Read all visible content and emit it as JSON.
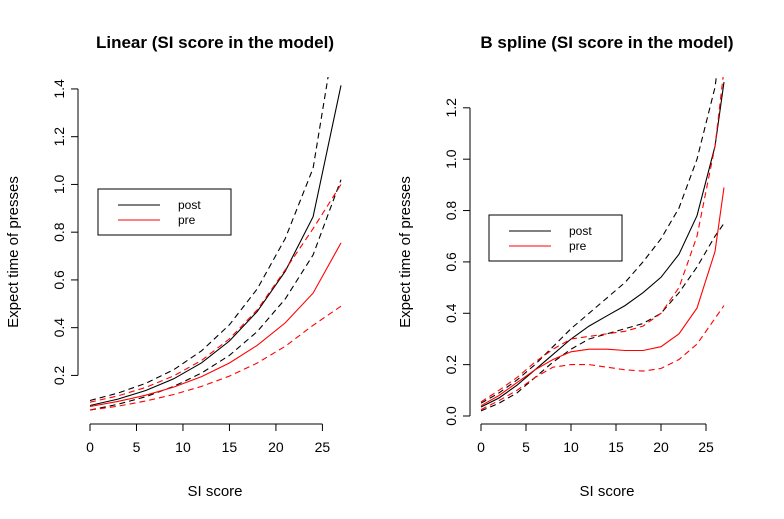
{
  "chart_data": [
    {
      "type": "line",
      "title": "Linear (SI score in the model)",
      "xlabel": "SI score",
      "ylabel": "Expect time of presses",
      "xlim": [
        0,
        27
      ],
      "ylim": [
        0.03,
        1.45
      ],
      "xticks": [
        0,
        5,
        10,
        15,
        20,
        25
      ],
      "yticks": [
        0.2,
        0.4,
        0.6,
        0.8,
        1.0,
        1.2,
        1.4
      ],
      "ytick_labels": [
        "0.2",
        "0.4",
        "0.6",
        "0.8",
        "1.0",
        "1.2",
        "1.4"
      ],
      "grid": false,
      "legend_position": "center-left",
      "legend": [
        {
          "label": "post",
          "color": "#000000"
        },
        {
          "label": "pre",
          "color": "#ff0000"
        }
      ],
      "x": [
        0,
        3,
        6,
        9,
        12,
        15,
        18,
        21,
        24,
        27
      ],
      "series": [
        {
          "name": "post",
          "style": "solid",
          "color": "#000000",
          "values": [
            0.074,
            0.101,
            0.137,
            0.186,
            0.253,
            0.344,
            0.468,
            0.636,
            0.865,
            1.415
          ]
        },
        {
          "name": "post upper",
          "style": "dashed",
          "color": "#000000",
          "values": [
            0.095,
            0.126,
            0.167,
            0.224,
            0.303,
            0.412,
            0.563,
            0.773,
            1.068,
            1.78
          ]
        },
        {
          "name": "post lower",
          "style": "dashed",
          "color": "#000000",
          "values": [
            0.055,
            0.079,
            0.111,
            0.154,
            0.21,
            0.284,
            0.384,
            0.52,
            0.705,
            1.02
          ]
        },
        {
          "name": "pre",
          "style": "solid",
          "color": "#ff0000",
          "values": [
            0.07,
            0.091,
            0.117,
            0.151,
            0.195,
            0.252,
            0.326,
            0.42,
            0.545,
            0.755
          ]
        },
        {
          "name": "pre upper",
          "style": "dashed",
          "color": "#ff0000",
          "values": [
            0.088,
            0.114,
            0.15,
            0.198,
            0.263,
            0.353,
            0.475,
            0.642,
            0.815,
            1.0
          ]
        },
        {
          "name": "pre lower",
          "style": "dashed",
          "color": "#ff0000",
          "values": [
            0.055,
            0.071,
            0.093,
            0.12,
            0.154,
            0.197,
            0.252,
            0.322,
            0.41,
            0.49
          ]
        }
      ]
    },
    {
      "type": "line",
      "title": "B spline (SI score in the model)",
      "xlabel": "SI score",
      "ylabel": "Expect time of presses",
      "xlim": [
        0,
        27
      ],
      "ylim": [
        0.0,
        1.32
      ],
      "xticks": [
        0,
        5,
        10,
        15,
        20,
        25
      ],
      "yticks": [
        0.0,
        0.2,
        0.4,
        0.6,
        0.8,
        1.0,
        1.2
      ],
      "ytick_labels": [
        "0.0",
        "0.2",
        "0.4",
        "0.6",
        "0.8",
        "1.0",
        "1.2"
      ],
      "grid": false,
      "legend_position": "center-left",
      "legend": [
        {
          "label": "post",
          "color": "#000000"
        },
        {
          "label": "pre",
          "color": "#ff0000"
        }
      ],
      "x": [
        0,
        2,
        4,
        6,
        8,
        10,
        12,
        14,
        16,
        18,
        20,
        22,
        24,
        26,
        27
      ],
      "series": [
        {
          "name": "post",
          "style": "solid",
          "color": "#000000",
          "values": [
            0.035,
            0.07,
            0.12,
            0.18,
            0.24,
            0.3,
            0.35,
            0.39,
            0.43,
            0.48,
            0.54,
            0.63,
            0.78,
            1.05,
            1.3
          ]
        },
        {
          "name": "post upper",
          "style": "dashed",
          "color": "#000000",
          "values": [
            0.05,
            0.09,
            0.14,
            0.2,
            0.27,
            0.34,
            0.4,
            0.46,
            0.52,
            0.6,
            0.69,
            0.81,
            1.0,
            1.28,
            1.55
          ]
        },
        {
          "name": "post lower",
          "style": "dashed",
          "color": "#000000",
          "values": [
            0.02,
            0.05,
            0.09,
            0.15,
            0.21,
            0.26,
            0.3,
            0.32,
            0.34,
            0.36,
            0.4,
            0.48,
            0.58,
            0.7,
            0.75
          ]
        },
        {
          "name": "pre",
          "style": "solid",
          "color": "#ff0000",
          "values": [
            0.04,
            0.08,
            0.13,
            0.18,
            0.22,
            0.25,
            0.26,
            0.26,
            0.255,
            0.255,
            0.27,
            0.32,
            0.42,
            0.64,
            0.89
          ]
        },
        {
          "name": "pre upper",
          "style": "dashed",
          "color": "#ff0000",
          "values": [
            0.055,
            0.1,
            0.15,
            0.21,
            0.26,
            0.3,
            0.31,
            0.32,
            0.33,
            0.35,
            0.4,
            0.5,
            0.7,
            1.05,
            1.35
          ]
        },
        {
          "name": "pre lower",
          "style": "dashed",
          "color": "#ff0000",
          "values": [
            0.025,
            0.06,
            0.1,
            0.15,
            0.19,
            0.2,
            0.2,
            0.19,
            0.18,
            0.175,
            0.185,
            0.22,
            0.28,
            0.38,
            0.43
          ]
        }
      ]
    }
  ]
}
